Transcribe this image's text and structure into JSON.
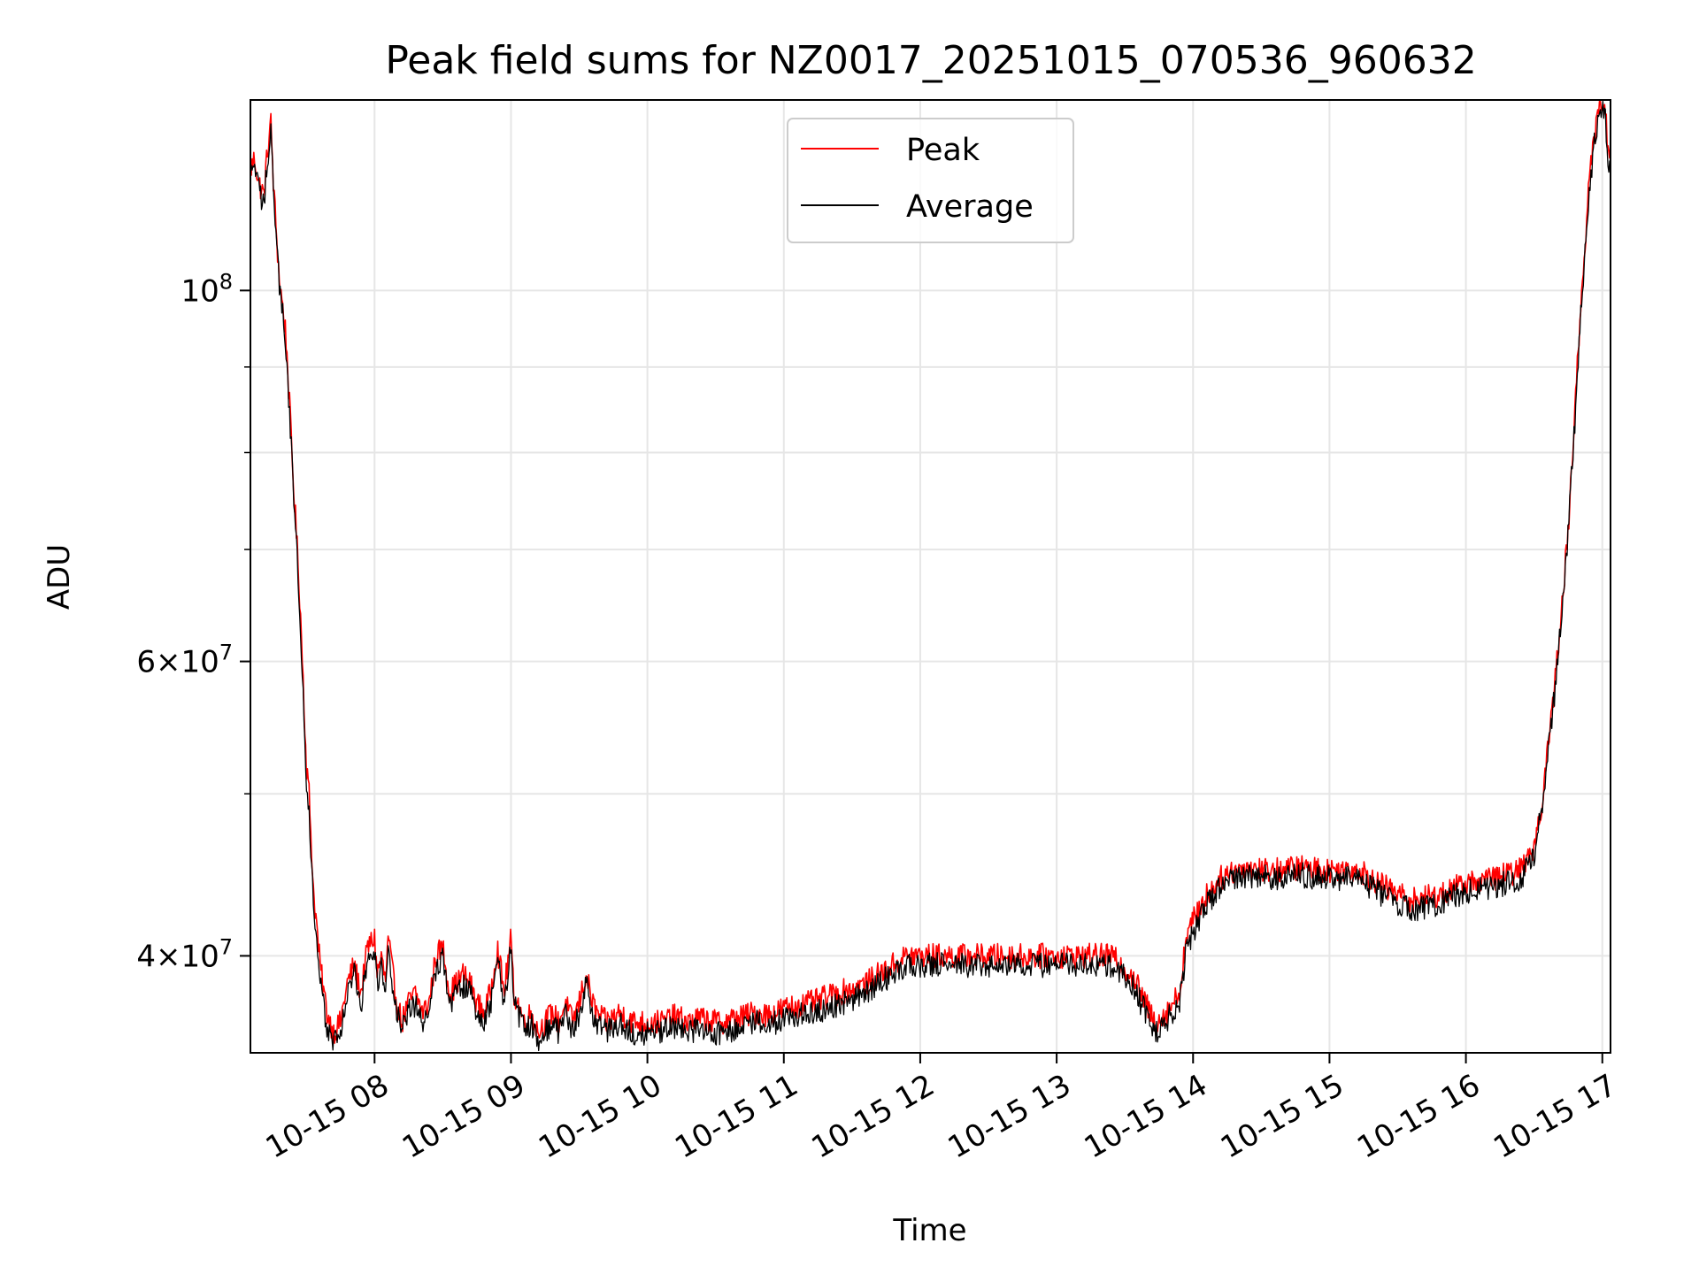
{
  "chart_data": {
    "type": "line",
    "title": "Peak field sums for NZ0017_20251015_070536_960632",
    "xlabel": "Time",
    "ylabel": "ADU",
    "yscale": "log",
    "grid": true,
    "legend_position": "top-center",
    "xlim_hours": [
      7.09,
      17.06
    ],
    "ylim": [
      35000000,
      130000000
    ],
    "x_ticks": [
      {
        "value": 8,
        "label": "10-15 08"
      },
      {
        "value": 9,
        "label": "10-15 09"
      },
      {
        "value": 10,
        "label": "10-15 10"
      },
      {
        "value": 11,
        "label": "10-15 11"
      },
      {
        "value": 12,
        "label": "10-15 12"
      },
      {
        "value": 13,
        "label": "10-15 13"
      },
      {
        "value": 14,
        "label": "10-15 14"
      },
      {
        "value": 15,
        "label": "10-15 15"
      },
      {
        "value": 16,
        "label": "10-15 16"
      },
      {
        "value": 17,
        "label": "10-15 17"
      }
    ],
    "y_major_ticks": [
      {
        "value": 40000000,
        "base": "4×10",
        "exp": "7"
      },
      {
        "value": 60000000,
        "base": "6×10",
        "exp": "7"
      },
      {
        "value": 100000000,
        "base": "10",
        "exp": "8"
      }
    ],
    "y_minor_ticks": [
      50000000,
      70000000,
      80000000,
      90000000
    ],
    "series": [
      {
        "name": "Peak",
        "color": "#ff0000",
        "x": [
          7.09,
          7.12,
          7.15,
          7.19,
          7.21,
          7.24,
          7.26,
          7.3,
          7.35,
          7.4,
          7.45,
          7.5,
          7.52,
          7.55,
          7.6,
          7.65,
          7.7,
          7.75,
          7.8,
          7.85,
          7.9,
          7.95,
          8.0,
          8.02,
          8.05,
          8.08,
          8.1,
          8.15,
          8.2,
          8.25,
          8.3,
          8.35,
          8.4,
          8.45,
          8.5,
          8.55,
          8.6,
          8.65,
          8.7,
          8.75,
          8.8,
          8.85,
          8.9,
          8.95,
          9.0,
          9.02,
          9.05,
          9.1,
          9.15,
          9.2,
          9.25,
          9.3,
          9.35,
          9.4,
          9.45,
          9.5,
          9.55,
          9.58,
          9.62,
          9.7,
          9.8,
          9.9,
          10.0,
          10.1,
          10.2,
          10.3,
          10.4,
          10.5,
          10.6,
          10.7,
          10.8,
          10.9,
          11.0,
          11.2,
          11.4,
          11.6,
          11.8,
          11.9,
          12.0,
          12.5,
          13.0,
          13.4,
          13.55,
          13.65,
          13.72,
          13.78,
          13.85,
          13.9,
          13.95,
          14.0,
          14.1,
          14.2,
          14.3,
          14.4,
          14.6,
          14.8,
          15.0,
          15.2,
          15.4,
          15.6,
          15.8,
          16.0,
          16.2,
          16.4,
          16.5,
          16.55,
          16.6,
          16.65,
          16.7,
          16.75,
          16.8,
          16.85,
          16.9,
          16.95,
          16.98,
          17.02,
          17.04,
          17.06
        ],
        "values": [
          118000000,
          120000000,
          116000000,
          114000000,
          120000000,
          126000000,
          115000000,
          102000000,
          94000000,
          78000000,
          66000000,
          52000000,
          50000000,
          44000000,
          39500000,
          37000000,
          36000000,
          36500000,
          38500000,
          39500000,
          38000000,
          40500000,
          41000000,
          39000000,
          40000000,
          38500000,
          41000000,
          38000000,
          36500000,
          37500000,
          38000000,
          37000000,
          37500000,
          40000000,
          40500000,
          38000000,
          38500000,
          39000000,
          38500000,
          37500000,
          37000000,
          38000000,
          40500000,
          38000000,
          41000000,
          38000000,
          37500000,
          36500000,
          37000000,
          36000000,
          36500000,
          37000000,
          36500000,
          37500000,
          36500000,
          37500000,
          39000000,
          38000000,
          37000000,
          36500000,
          37000000,
          36500000,
          36500000,
          36500000,
          36800000,
          36500000,
          36700000,
          36500000,
          36600000,
          36800000,
          37000000,
          36900000,
          37200000,
          37500000,
          38000000,
          38500000,
          39500000,
          40000000,
          40000000,
          40000000,
          40000000,
          40000000,
          39000000,
          37500000,
          36500000,
          36800000,
          37500000,
          38000000,
          41000000,
          42000000,
          43500000,
          44500000,
          45000000,
          45200000,
          45000000,
          45200000,
          45000000,
          45100000,
          44000000,
          43200000,
          43500000,
          44200000,
          44500000,
          45000000,
          46500000,
          49000000,
          53000000,
          58000000,
          64000000,
          72000000,
          85000000,
          100000000,
          115000000,
          125000000,
          130000000,
          130000000,
          120000000,
          121000000
        ]
      },
      {
        "name": "Average",
        "color": "#000000",
        "x": [
          7.09,
          7.12,
          7.15,
          7.19,
          7.21,
          7.24,
          7.26,
          7.3,
          7.35,
          7.4,
          7.45,
          7.5,
          7.52,
          7.55,
          7.6,
          7.65,
          7.7,
          7.75,
          7.8,
          7.85,
          7.9,
          7.95,
          8.0,
          8.02,
          8.05,
          8.08,
          8.1,
          8.15,
          8.2,
          8.25,
          8.3,
          8.35,
          8.4,
          8.45,
          8.5,
          8.55,
          8.6,
          8.65,
          8.7,
          8.75,
          8.8,
          8.85,
          8.9,
          8.95,
          9.0,
          9.02,
          9.05,
          9.1,
          9.15,
          9.2,
          9.25,
          9.3,
          9.35,
          9.4,
          9.45,
          9.5,
          9.55,
          9.58,
          9.62,
          9.7,
          9.8,
          9.9,
          10.0,
          10.1,
          10.2,
          10.3,
          10.4,
          10.5,
          10.6,
          10.7,
          10.8,
          10.9,
          11.0,
          11.2,
          11.4,
          11.6,
          11.8,
          11.9,
          12.0,
          12.5,
          13.0,
          13.4,
          13.55,
          13.65,
          13.72,
          13.78,
          13.85,
          13.9,
          13.95,
          14.0,
          14.1,
          14.2,
          14.3,
          14.4,
          14.6,
          14.8,
          15.0,
          15.2,
          15.4,
          15.6,
          15.8,
          16.0,
          16.2,
          16.4,
          16.5,
          16.55,
          16.6,
          16.65,
          16.7,
          16.75,
          16.8,
          16.85,
          16.9,
          16.95,
          16.98,
          17.02,
          17.04,
          17.06
        ],
        "values": [
          117000000,
          119000000,
          115000000,
          112000000,
          119000000,
          125000000,
          114000000,
          101000000,
          93000000,
          77000000,
          65000000,
          51000000,
          49000000,
          43000000,
          38500000,
          36300000,
          35500000,
          36000000,
          38000000,
          39000000,
          37300000,
          40000000,
          40400000,
          38400000,
          39400000,
          38000000,
          40400000,
          37400000,
          36000000,
          37000000,
          37400000,
          36500000,
          37000000,
          39400000,
          40000000,
          37400000,
          38000000,
          38400000,
          38000000,
          37000000,
          36500000,
          37400000,
          40000000,
          37400000,
          40500000,
          37400000,
          37000000,
          36000000,
          36500000,
          35500000,
          36000000,
          36500000,
          36000000,
          37000000,
          36000000,
          37000000,
          38500000,
          37400000,
          36500000,
          36000000,
          36500000,
          36000000,
          36000000,
          36000000,
          36300000,
          36000000,
          36200000,
          36000000,
          36100000,
          36300000,
          36500000,
          36400000,
          36700000,
          37000000,
          37400000,
          38000000,
          39000000,
          39500000,
          39500000,
          39500000,
          39500000,
          39500000,
          38500000,
          37000000,
          36000000,
          36300000,
          37000000,
          37400000,
          40400000,
          41400000,
          43000000,
          44000000,
          44500000,
          44700000,
          44500000,
          44700000,
          44500000,
          44600000,
          43400000,
          42600000,
          43000000,
          43700000,
          44000000,
          44500000,
          46000000,
          48500000,
          52500000,
          57500000,
          63500000,
          71500000,
          84000000,
          99000000,
          114000000,
          124000000,
          129000000,
          129000000,
          119000000,
          120000000
        ]
      }
    ]
  }
}
